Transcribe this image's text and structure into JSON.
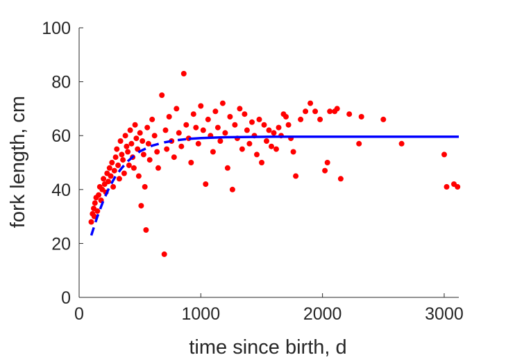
{
  "chart_data": {
    "type": "scatter",
    "xlabel": "time since birth, d",
    "ylabel": "fork length, cm",
    "xlim": [
      0,
      3120
    ],
    "ylim": [
      0,
      100
    ],
    "xticks": [
      0,
      1000,
      2000,
      3000
    ],
    "yticks": [
      0,
      20,
      40,
      60,
      80,
      100
    ],
    "grid": false,
    "legend": "none",
    "colors": {
      "data": "#ff0000",
      "fit": "#0000ff",
      "axis": "#262626"
    },
    "series": [
      {
        "type": "scatter",
        "points": [
          [
            100,
            28
          ],
          [
            110,
            31
          ],
          [
            120,
            33
          ],
          [
            130,
            35
          ],
          [
            125,
            30
          ],
          [
            140,
            37
          ],
          [
            150,
            32
          ],
          [
            160,
            38
          ],
          [
            170,
            41
          ],
          [
            180,
            36
          ],
          [
            190,
            40
          ],
          [
            200,
            44
          ],
          [
            210,
            42
          ],
          [
            220,
            39
          ],
          [
            230,
            46
          ],
          [
            240,
            43
          ],
          [
            250,
            48
          ],
          [
            260,
            45
          ],
          [
            270,
            50
          ],
          [
            280,
            41
          ],
          [
            290,
            47
          ],
          [
            300,
            52
          ],
          [
            310,
            55
          ],
          [
            320,
            49
          ],
          [
            330,
            44
          ],
          [
            340,
            58
          ],
          [
            350,
            53
          ],
          [
            360,
            51
          ],
          [
            370,
            46
          ],
          [
            380,
            60
          ],
          [
            390,
            56
          ],
          [
            400,
            54
          ],
          [
            410,
            49
          ],
          [
            420,
            62
          ],
          [
            430,
            57
          ],
          [
            440,
            52
          ],
          [
            450,
            48
          ],
          [
            460,
            64
          ],
          [
            470,
            59
          ],
          [
            480,
            55
          ],
          [
            490,
            45
          ],
          [
            500,
            61
          ],
          [
            510,
            34
          ],
          [
            520,
            58
          ],
          [
            530,
            53
          ],
          [
            540,
            41
          ],
          [
            550,
            25
          ],
          [
            560,
            63
          ],
          [
            570,
            57
          ],
          [
            580,
            51
          ],
          [
            600,
            66
          ],
          [
            620,
            60
          ],
          [
            640,
            54
          ],
          [
            650,
            48
          ],
          [
            680,
            75
          ],
          [
            700,
            16
          ],
          [
            710,
            62
          ],
          [
            720,
            55
          ],
          [
            740,
            67
          ],
          [
            760,
            58
          ],
          [
            780,
            52
          ],
          [
            800,
            70
          ],
          [
            820,
            61
          ],
          [
            840,
            56
          ],
          [
            860,
            83
          ],
          [
            880,
            64
          ],
          [
            900,
            59
          ],
          [
            920,
            50
          ],
          [
            940,
            68
          ],
          [
            960,
            63
          ],
          [
            980,
            57
          ],
          [
            1000,
            71
          ],
          [
            1020,
            62
          ],
          [
            1040,
            42
          ],
          [
            1060,
            66
          ],
          [
            1080,
            60
          ],
          [
            1100,
            54
          ],
          [
            1120,
            69
          ],
          [
            1140,
            63
          ],
          [
            1160,
            58
          ],
          [
            1180,
            72
          ],
          [
            1200,
            61
          ],
          [
            1220,
            48
          ],
          [
            1240,
            67
          ],
          [
            1260,
            40
          ],
          [
            1280,
            64
          ],
          [
            1300,
            59
          ],
          [
            1320,
            70
          ],
          [
            1340,
            55
          ],
          [
            1360,
            68
          ],
          [
            1380,
            62
          ],
          [
            1400,
            57
          ],
          [
            1420,
            65
          ],
          [
            1440,
            60
          ],
          [
            1460,
            53
          ],
          [
            1480,
            66
          ],
          [
            1500,
            50
          ],
          [
            1520,
            64
          ],
          [
            1540,
            58
          ],
          [
            1560,
            62
          ],
          [
            1580,
            56
          ],
          [
            1600,
            61
          ],
          [
            1620,
            55
          ],
          [
            1640,
            63
          ],
          [
            1660,
            60
          ],
          [
            1680,
            68
          ],
          [
            1700,
            67
          ],
          [
            1720,
            64
          ],
          [
            1740,
            59
          ],
          [
            1760,
            54
          ],
          [
            1780,
            45
          ],
          [
            1820,
            66
          ],
          [
            1860,
            69
          ],
          [
            1900,
            72
          ],
          [
            1940,
            69
          ],
          [
            1980,
            66
          ],
          [
            2020,
            47
          ],
          [
            2040,
            50
          ],
          [
            2060,
            69
          ],
          [
            2100,
            69
          ],
          [
            2120,
            70
          ],
          [
            2150,
            44
          ],
          [
            2220,
            68
          ],
          [
            2300,
            57
          ],
          [
            2320,
            67
          ],
          [
            2500,
            66
          ],
          [
            2650,
            57
          ],
          [
            3000,
            53
          ],
          [
            3020,
            41
          ],
          [
            3080,
            42
          ],
          [
            3110,
            41
          ]
        ]
      },
      {
        "type": "line",
        "x": [
          100,
          150,
          200,
          250,
          300,
          350,
          400,
          450,
          500,
          600,
          700,
          800,
          900,
          1000,
          1200,
          1400,
          1600,
          2000,
          2500,
          3120
        ],
        "y": [
          23,
          30,
          36,
          41,
          45,
          48,
          50.5,
          52.5,
          54.2,
          56.3,
          57.5,
          58.3,
          58.8,
          59.1,
          59.4,
          59.5,
          59.6,
          59.6,
          59.6,
          59.6
        ]
      }
    ]
  }
}
